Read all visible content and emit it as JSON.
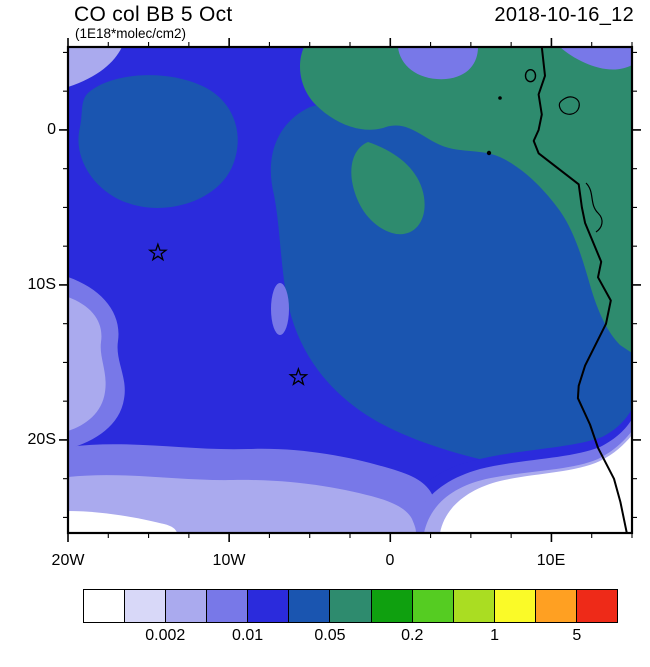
{
  "header": {
    "title": "CO col BB 5 Oct",
    "units": "(1E18*molec/cm2)",
    "timestamp": "2018-10-16_12"
  },
  "axes": {
    "y_ticks": [
      "0",
      "10S",
      "20S"
    ],
    "x_ticks": [
      "20W",
      "10W",
      "0",
      "10E"
    ]
  },
  "chart_data": {
    "type": "heatmap",
    "title": "CO col BB 5 Oct",
    "subtitle_units": "(1E18*molec/cm2)",
    "timestamp": "2018-10-16_12",
    "description": "Filled-contour map of biomass-burning CO column over the South Atlantic and southwest Africa, with African coastline drawn in black",
    "lon_range": "20W to 15E",
    "lat_range": "26S to 5.5N",
    "x_tick_labels": [
      "20W",
      "10W",
      "0",
      "10E"
    ],
    "y_tick_labels": [
      "0",
      "10S",
      "20S"
    ],
    "grid": false,
    "legend_position": "horizontal colorbar below map",
    "colorbar": {
      "levels": [
        0.001,
        0.002,
        0.005,
        0.01,
        0.02,
        0.05,
        0.1,
        0.2,
        0.5,
        1,
        2,
        5
      ],
      "labeled_levels": [
        "0.002",
        "0.01",
        "0.05",
        "0.2",
        "1",
        "5"
      ],
      "colors": [
        "#FFFFFF",
        "#D8D8F8",
        "#AAAAEE",
        "#7878E8",
        "#2B2BDC",
        "#1A55B0",
        "#2E8B6E",
        "#0FA00F",
        "#55CC22",
        "#AADD22",
        "#FAFA28",
        "#FFA022",
        "#EE2A18"
      ]
    },
    "field_values_read_from_map": [
      {
        "region": "most of map (open ocean)",
        "value_range": "0.01-0.02"
      },
      {
        "region": "broad plume center and east toward Angola coast",
        "value_range": "0.02-0.05"
      },
      {
        "region": "Gulf of Guinea / Gabon-Congo coast, upper right",
        "value_range": "0.05-0.1"
      },
      {
        "region": "upper-left patch near 15W, 2S",
        "value_range": "0.02-0.05"
      },
      {
        "region": "southern band and lower-left edge",
        "value_range": "0.002-0.01"
      },
      {
        "region": "bottom corners of map",
        "value_range": "below 0.001"
      }
    ],
    "markers": [
      {
        "symbol": "star",
        "lon": -14.4,
        "lat": -8
      },
      {
        "symbol": "star",
        "lon": -5.7,
        "lat": -16
      }
    ]
  }
}
